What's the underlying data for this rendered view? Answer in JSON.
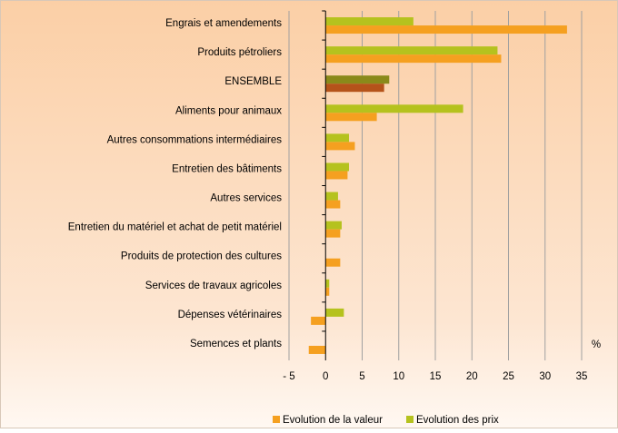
{
  "chart_data": {
    "type": "hbar",
    "xlabel": "%",
    "categories": [
      "Engrais et amendements",
      "Produits pétroliers",
      "ENSEMBLE",
      "Aliments pour animaux",
      "Autres consommations intermédiaires",
      "Entretien des bâtiments",
      "Autres services",
      "Entretien du matériel et achat de petit matériel",
      "Produits de protection des cultures",
      "Services de travaux agricoles",
      "Dépenses vétérinaires",
      "Semences et plants"
    ],
    "series": [
      {
        "name": "Evolution de la valeur",
        "color": "#f5a020",
        "values": [
          33,
          24,
          8,
          7,
          4,
          3,
          2,
          2,
          2,
          0.5,
          -2,
          -2.3
        ]
      },
      {
        "name": "Evolution des prix",
        "color": "#b5c21e",
        "values": [
          12,
          23.5,
          8.7,
          18.8,
          3.2,
          3.2,
          1.7,
          2.2,
          0,
          0.5,
          2.5,
          0
        ]
      }
    ],
    "highlight": {
      "index": 2,
      "colors": [
        "#b5531a",
        "#8a8a1a"
      ]
    },
    "xlim": [
      -5,
      35
    ],
    "xticks": [
      {
        "value": -5,
        "label": "- 5"
      },
      0,
      5,
      10,
      15,
      20,
      25,
      30,
      35
    ],
    "grid": true,
    "legend": "bottom"
  }
}
